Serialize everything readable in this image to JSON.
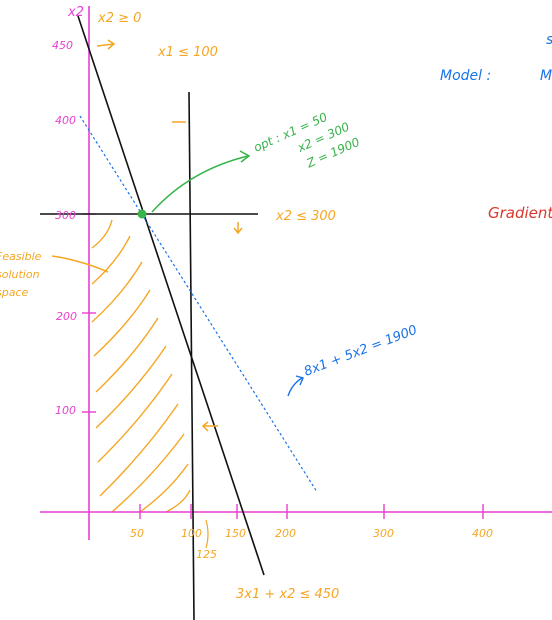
{
  "colors": {
    "axis": "#e83fd0",
    "constraint_line": "#111111",
    "hatch": "#f5a623",
    "optimal_point": "#37b44a",
    "objective_line": "#1a73e8",
    "label_orange": "#f5a623",
    "label_blue": "#1a73e8",
    "label_red": "#d9382c"
  },
  "axes": {
    "y_label": "x2",
    "y_ticks": [
      "450",
      "400",
      "300",
      "200",
      "100"
    ],
    "x_ticks": [
      "50",
      "100",
      "150",
      "200",
      "300",
      "400"
    ],
    "x_extra_tick": "125"
  },
  "constraints": {
    "nonneg": "x2 ≥ 0",
    "x1_limit": "x1 ≤ 100",
    "x2_limit": "x2 ≤ 300",
    "combined": "3x1 + x2 ≤ 450"
  },
  "feasible_label": {
    "line1": "Feasible",
    "line2": "solution",
    "line3": "space"
  },
  "optimal": {
    "line1": "opt : x1 = 50",
    "line2": "x2 = 300",
    "line3": "Z = 1900"
  },
  "objective_line_label": "8x1 + 5x2 = 1900",
  "side_notes": {
    "model": "Model :",
    "model_suffix": "M",
    "s_mark": "s",
    "gradient": "Gradient"
  }
}
